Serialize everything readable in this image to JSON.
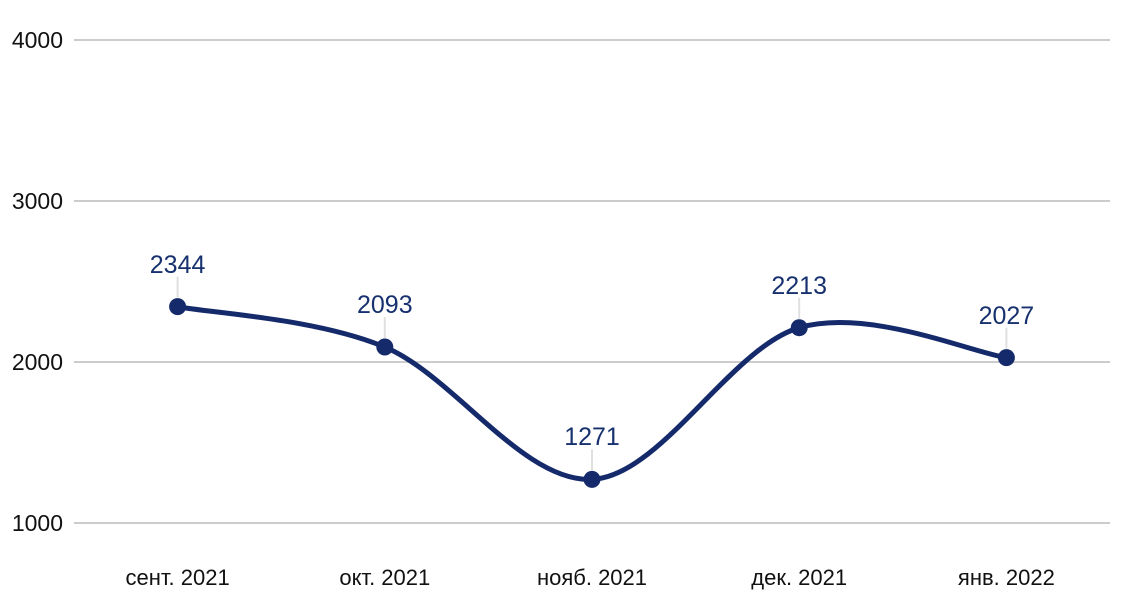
{
  "chart_data": {
    "type": "line",
    "title": "",
    "xlabel": "",
    "ylabel": "",
    "categories": [
      "сент. 2021",
      "окт. 2021",
      "нояб. 2021",
      "дек. 2021",
      "янв. 2022"
    ],
    "values": [
      2344,
      2093,
      1271,
      2213,
      2027
    ],
    "yticks": [
      4000,
      3000,
      2000,
      1000
    ],
    "ylim": [
      1000,
      4000
    ],
    "grid": "horizontal-only",
    "legend": "none",
    "curve": "smooth",
    "points": "filled-circles-with-value-callouts"
  },
  "colors": {
    "line": "#152a6b",
    "point": "#152a6b",
    "data_label_text": "#17316f",
    "axis_text": "#111111",
    "gridline": "#cccccc",
    "callout_line": "#e0e0e0",
    "background": "#ffffff"
  }
}
